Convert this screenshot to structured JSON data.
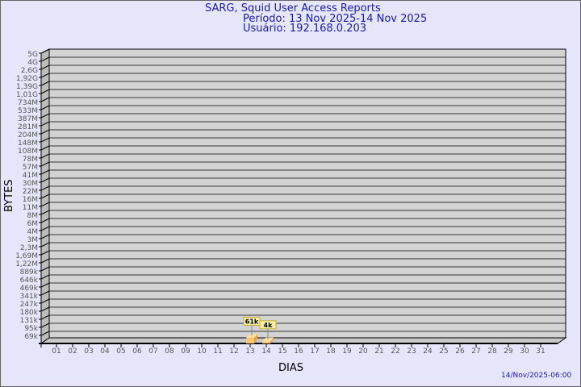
{
  "header": {
    "title": "SARG, Squid User Access Reports",
    "period": "Período: 13 Nov 2025-14 Nov 2025",
    "user": "Usuário: 192.168.0.203"
  },
  "footer": {
    "timestamp": "14/Nov/2025-06:00"
  },
  "colors": {
    "background": "#e6e6fa",
    "plot": "#d3d3d3",
    "bar": "#ffc66e",
    "title": "#1a1aa6"
  },
  "chart_data": {
    "type": "bar",
    "xlabel": "DIAS",
    "ylabel": "BYTES",
    "scale": "log",
    "grid": true,
    "categories": [
      "01",
      "02",
      "03",
      "04",
      "05",
      "06",
      "07",
      "08",
      "09",
      "10",
      "11",
      "12",
      "13",
      "14",
      "15",
      "16",
      "17",
      "18",
      "19",
      "20",
      "21",
      "22",
      "23",
      "24",
      "25",
      "26",
      "27",
      "28",
      "29",
      "30",
      "31"
    ],
    "y_ticks": [
      "5G",
      "4G",
      "2,6G",
      "1,92G",
      "1,39G",
      "1,01G",
      "734M",
      "533M",
      "387M",
      "281M",
      "204M",
      "148M",
      "108M",
      "78M",
      "57M",
      "41M",
      "30M",
      "22M",
      "16M",
      "11M",
      "8M",
      "6M",
      "4M",
      "3M",
      "2,3M",
      "1,69M",
      "1,22M",
      "889k",
      "646k",
      "469k",
      "341k",
      "247k",
      "180k",
      "131k",
      "95k",
      "69k"
    ],
    "bars": [
      {
        "day": "13",
        "value": 61000,
        "label": "61k"
      },
      {
        "day": "14",
        "value": 4000,
        "label": "4k"
      }
    ]
  }
}
